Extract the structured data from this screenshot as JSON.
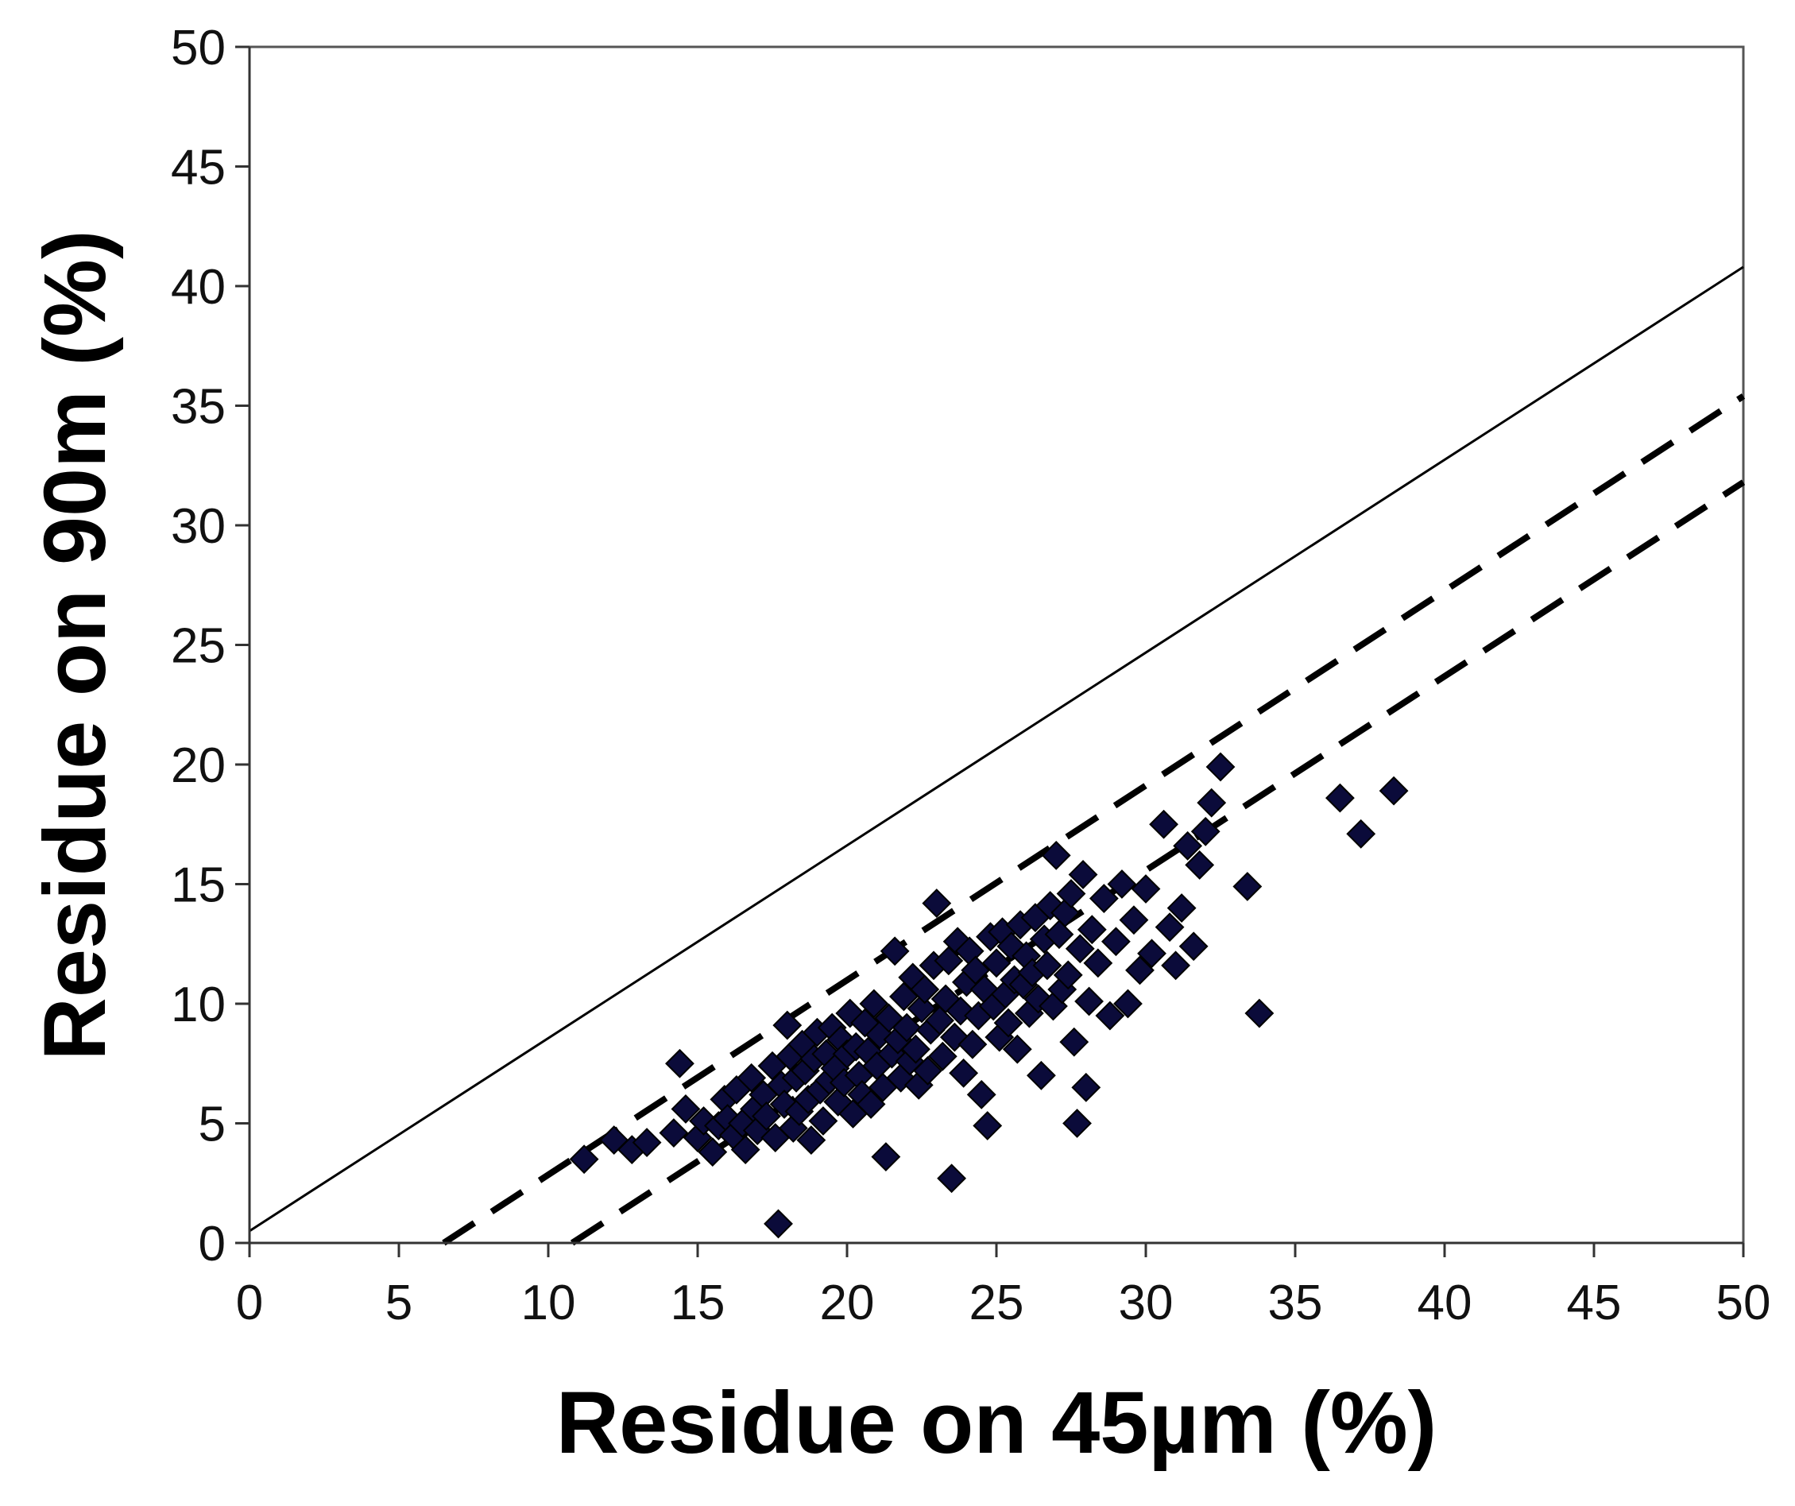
{
  "chart_data": {
    "type": "scatter",
    "title": "",
    "xlabel": "Residue on 45µm (%)",
    "ylabel": "Residue on 90m (%)",
    "xlim": [
      0,
      50
    ],
    "ylim": [
      0,
      50
    ],
    "xticks": [
      "0",
      "5",
      "10",
      "15",
      "20",
      "25",
      "30",
      "35",
      "40",
      "45",
      "50"
    ],
    "yticks": [
      "0",
      "5",
      "10",
      "15",
      "20",
      "25",
      "30",
      "35",
      "40",
      "45",
      "50"
    ],
    "grid": false,
    "legend": "none",
    "marker": "diamond",
    "marker_color": "#0b0b3a",
    "lines": [
      {
        "style": "solid",
        "x": [
          0,
          50
        ],
        "y": [
          0.5,
          40.8
        ]
      },
      {
        "style": "dashed",
        "x": [
          6.5,
          50
        ],
        "y": [
          0,
          35.4
        ]
      },
      {
        "style": "dashed",
        "x": [
          10.8,
          50
        ],
        "y": [
          0,
          31.8
        ]
      }
    ],
    "points": [
      [
        11.2,
        3.5
      ],
      [
        12.2,
        4.3
      ],
      [
        12.8,
        3.9
      ],
      [
        13.3,
        4.2
      ],
      [
        14.2,
        4.6
      ],
      [
        14.4,
        7.5
      ],
      [
        14.6,
        5.6
      ],
      [
        15.0,
        4.4
      ],
      [
        15.2,
        5.1
      ],
      [
        15.5,
        3.8
      ],
      [
        15.7,
        4.9
      ],
      [
        15.9,
        6.0
      ],
      [
        16.0,
        5.2
      ],
      [
        16.2,
        4.5
      ],
      [
        16.3,
        6.4
      ],
      [
        16.5,
        5.0
      ],
      [
        16.6,
        3.9
      ],
      [
        16.8,
        6.9
      ],
      [
        16.9,
        5.6
      ],
      [
        17.0,
        4.7
      ],
      [
        17.2,
        6.2
      ],
      [
        17.3,
        5.3
      ],
      [
        17.5,
        7.4
      ],
      [
        17.6,
        4.4
      ],
      [
        17.7,
        0.8
      ],
      [
        17.8,
        6.6
      ],
      [
        17.9,
        5.8
      ],
      [
        18.0,
        9.1
      ],
      [
        18.1,
        7.8
      ],
      [
        18.2,
        4.8
      ],
      [
        18.3,
        6.9
      ],
      [
        18.4,
        5.5
      ],
      [
        18.5,
        8.3
      ],
      [
        18.6,
        7.2
      ],
      [
        18.7,
        6.0
      ],
      [
        18.8,
        4.3
      ],
      [
        18.9,
        7.7
      ],
      [
        19.0,
        8.8
      ],
      [
        19.1,
        6.4
      ],
      [
        19.2,
        5.1
      ],
      [
        19.3,
        7.9
      ],
      [
        19.4,
        6.8
      ],
      [
        19.5,
        9.0
      ],
      [
        19.6,
        7.3
      ],
      [
        19.7,
        5.9
      ],
      [
        19.8,
        8.5
      ],
      [
        19.9,
        6.7
      ],
      [
        20.0,
        7.9
      ],
      [
        20.1,
        9.6
      ],
      [
        20.2,
        5.4
      ],
      [
        20.3,
        8.2
      ],
      [
        20.4,
        7.0
      ],
      [
        20.5,
        6.2
      ],
      [
        20.6,
        9.2
      ],
      [
        20.7,
        8.0
      ],
      [
        20.8,
        5.8
      ],
      [
        20.9,
        10.0
      ],
      [
        21.0,
        7.4
      ],
      [
        21.1,
        8.7
      ],
      [
        21.2,
        6.5
      ],
      [
        21.3,
        3.6
      ],
      [
        21.4,
        9.4
      ],
      [
        21.5,
        7.9
      ],
      [
        21.6,
        12.2
      ],
      [
        21.7,
        8.5
      ],
      [
        21.8,
        6.9
      ],
      [
        21.9,
        10.3
      ],
      [
        22.0,
        9.0
      ],
      [
        22.1,
        7.6
      ],
      [
        22.2,
        11.1
      ],
      [
        22.3,
        8.1
      ],
      [
        22.4,
        6.6
      ],
      [
        22.5,
        9.8
      ],
      [
        22.6,
        10.6
      ],
      [
        22.7,
        7.2
      ],
      [
        22.8,
        8.9
      ],
      [
        22.9,
        11.6
      ],
      [
        23.0,
        14.2
      ],
      [
        23.1,
        9.3
      ],
      [
        23.2,
        7.8
      ],
      [
        23.3,
        10.2
      ],
      [
        23.4,
        11.8
      ],
      [
        23.5,
        2.7
      ],
      [
        23.6,
        8.6
      ],
      [
        23.7,
        12.6
      ],
      [
        23.8,
        9.7
      ],
      [
        23.9,
        7.1
      ],
      [
        24.0,
        10.9
      ],
      [
        24.1,
        12.2
      ],
      [
        24.2,
        8.3
      ],
      [
        24.3,
        11.4
      ],
      [
        24.4,
        9.5
      ],
      [
        24.5,
        6.2
      ],
      [
        24.6,
        10.6
      ],
      [
        24.7,
        4.9
      ],
      [
        24.8,
        12.8
      ],
      [
        24.9,
        9.9
      ],
      [
        25.0,
        11.7
      ],
      [
        25.1,
        8.6
      ],
      [
        25.2,
        13.0
      ],
      [
        25.3,
        10.4
      ],
      [
        25.4,
        9.2
      ],
      [
        25.5,
        12.4
      ],
      [
        25.6,
        11.0
      ],
      [
        25.7,
        8.1
      ],
      [
        25.8,
        13.3
      ],
      [
        25.9,
        10.8
      ],
      [
        26.0,
        12.0
      ],
      [
        26.1,
        9.6
      ],
      [
        26.2,
        11.3
      ],
      [
        26.3,
        13.6
      ],
      [
        26.4,
        10.2
      ],
      [
        26.5,
        7.0
      ],
      [
        26.6,
        12.7
      ],
      [
        26.7,
        11.6
      ],
      [
        26.8,
        14.1
      ],
      [
        26.9,
        9.9
      ],
      [
        27.0,
        16.2
      ],
      [
        27.1,
        12.9
      ],
      [
        27.2,
        10.6
      ],
      [
        27.3,
        13.8
      ],
      [
        27.4,
        11.2
      ],
      [
        27.5,
        14.6
      ],
      [
        27.6,
        8.4
      ],
      [
        27.7,
        5.0
      ],
      [
        27.8,
        12.3
      ],
      [
        27.9,
        15.4
      ],
      [
        28.0,
        6.5
      ],
      [
        28.1,
        10.1
      ],
      [
        28.2,
        13.1
      ],
      [
        28.4,
        11.7
      ],
      [
        28.6,
        14.4
      ],
      [
        28.8,
        9.5
      ],
      [
        29.0,
        12.6
      ],
      [
        29.2,
        15.0
      ],
      [
        29.4,
        10.0
      ],
      [
        29.6,
        13.5
      ],
      [
        29.8,
        11.4
      ],
      [
        30.0,
        14.8
      ],
      [
        30.2,
        12.1
      ],
      [
        30.6,
        17.5
      ],
      [
        30.8,
        13.2
      ],
      [
        31.0,
        11.6
      ],
      [
        31.2,
        14.0
      ],
      [
        31.4,
        16.6
      ],
      [
        31.6,
        12.4
      ],
      [
        31.8,
        15.8
      ],
      [
        32.0,
        17.2
      ],
      [
        32.2,
        18.4
      ],
      [
        32.5,
        19.9
      ],
      [
        33.4,
        14.9
      ],
      [
        33.8,
        9.6
      ],
      [
        36.5,
        18.6
      ],
      [
        37.2,
        17.1
      ],
      [
        38.3,
        18.9
      ]
    ]
  }
}
